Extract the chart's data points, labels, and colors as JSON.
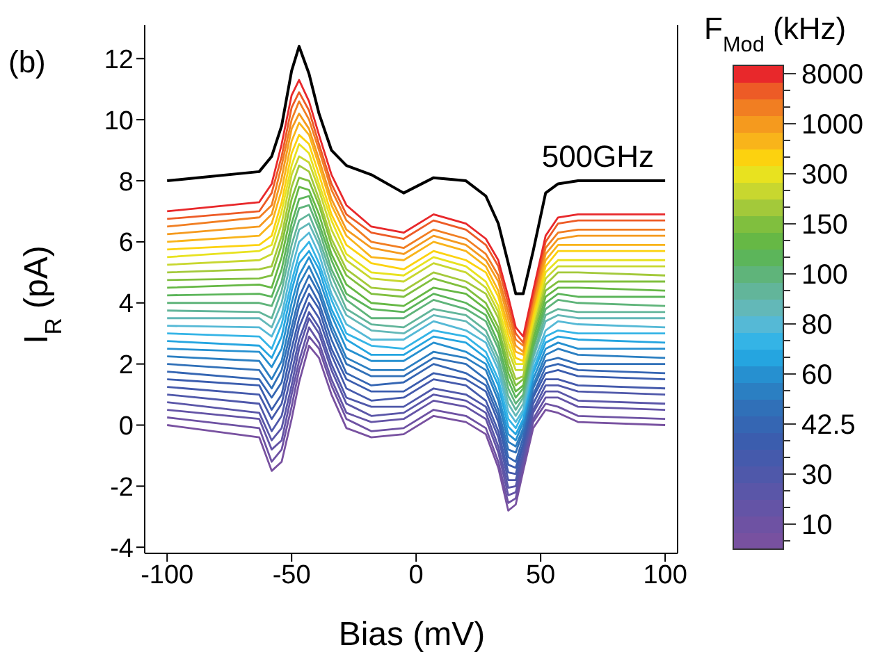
{
  "chart_data": {
    "type": "line",
    "annotations": [
      "(b)"
    ],
    "xlabel": "Bias (mV)",
    "ylabel": "I$_{R}$ (pA)",
    "legend_title": "F$_{Mod}$ (kHz)",
    "legend": "right",
    "xlim": [
      -109,
      105
    ],
    "xticks": [
      -100,
      -50,
      0,
      50,
      100
    ],
    "ylim": [
      -4.2,
      13.1
    ],
    "yticks": [
      -4,
      -2,
      0,
      2,
      4,
      6,
      8,
      10,
      12
    ],
    "marker": "none",
    "line_style": "solid",
    "x": [
      -100,
      -63,
      -58,
      -54,
      -50,
      -47,
      -43,
      -39,
      -34,
      -28,
      -18,
      -5,
      7,
      20,
      28,
      33,
      37,
      40,
      43,
      47,
      52,
      57,
      65,
      100
    ],
    "series": [
      {
        "color": "#7851a0",
        "values": [
          0,
          -0.4,
          -1.5,
          -1.2,
          0.2,
          1.4,
          2.6,
          2.2,
          1.0,
          -0.1,
          -0.4,
          -0.3,
          0.3,
          0.1,
          -0.3,
          -1.4,
          -2.8,
          -2.6,
          -1.5,
          -0.1,
          0.5,
          0.4,
          0.1,
          0
        ]
      },
      {
        "name": "10",
        "color": "#6e52a3",
        "values": [
          0.25,
          -0.1,
          -1.2,
          -0.8,
          0.6,
          1.8,
          2.9,
          2.5,
          1.3,
          0.2,
          -0.2,
          -0.1,
          0.5,
          0.3,
          -0.1,
          -1.2,
          -2.55,
          -2.4,
          -1.3,
          0.1,
          0.7,
          0.6,
          0.3,
          0.2
        ]
      },
      {
        "color": "#6454a6",
        "values": [
          0.5,
          0.2,
          -0.8,
          -0.5,
          1.0,
          2.1,
          3.2,
          2.7,
          1.5,
          0.4,
          0.1,
          0.2,
          0.8,
          0.6,
          0.2,
          -0.9,
          -2.3,
          -2.2,
          -1.2,
          0.2,
          0.9,
          0.9,
          0.6,
          0.5
        ]
      },
      {
        "color": "#5a56a8",
        "values": [
          0.75,
          0.4,
          -0.5,
          -0.1,
          1.3,
          2.5,
          3.5,
          3.0,
          1.8,
          0.7,
          0.3,
          0.4,
          1.0,
          0.8,
          0.4,
          -0.7,
          -2.05,
          -2.0,
          -1.0,
          0.4,
          1.1,
          1.1,
          0.8,
          0.7
        ]
      },
      {
        "name": "30",
        "color": "#4f58aa",
        "values": [
          1,
          0.7,
          -0.2,
          0.3,
          1.7,
          2.8,
          3.7,
          3.2,
          2.0,
          0.9,
          0.6,
          0.6,
          1.2,
          1.0,
          0.6,
          -0.4,
          -1.8,
          -1.8,
          -0.9,
          0.5,
          1.3,
          1.3,
          1.1,
          1.0
        ]
      },
      {
        "color": "#455aac",
        "values": [
          1.25,
          1.0,
          0.2,
          0.7,
          2.1,
          3.2,
          4.0,
          3.5,
          2.3,
          1.2,
          0.8,
          0.9,
          1.5,
          1.3,
          0.8,
          -0.2,
          -1.55,
          -1.6,
          -0.7,
          0.7,
          1.5,
          1.5,
          1.3,
          1.2
        ]
      },
      {
        "color": "#3b5dae",
        "values": [
          1.5,
          1.3,
          0.5,
          1.0,
          2.5,
          3.5,
          4.3,
          3.8,
          2.5,
          1.5,
          1.1,
          1.1,
          1.7,
          1.5,
          1.1,
          0.1,
          -1.3,
          -1.4,
          -0.6,
          0.9,
          1.7,
          1.8,
          1.6,
          1.5
        ]
      },
      {
        "name": "42.5",
        "color": "#3566b3",
        "values": [
          1.75,
          1.5,
          0.9,
          1.4,
          2.9,
          3.9,
          4.6,
          4.0,
          2.8,
          1.7,
          1.3,
          1.4,
          2.0,
          1.7,
          1.3,
          0.3,
          -1.05,
          -1.2,
          -0.4,
          1.0,
          1.9,
          2.0,
          1.8,
          1.7
        ]
      },
      {
        "color": "#3070b8",
        "values": [
          2,
          1.8,
          1.2,
          1.8,
          3.2,
          4.2,
          4.9,
          4.3,
          3.1,
          2.0,
          1.6,
          1.6,
          2.2,
          2.0,
          1.5,
          0.5,
          -0.8,
          -0.9,
          -0.2,
          1.2,
          2.1,
          2.2,
          2.0,
          2.0
        ]
      },
      {
        "color": "#2b7fc2",
        "values": [
          2.25,
          2.1,
          1.5,
          2.1,
          3.6,
          4.6,
          5.2,
          4.5,
          3.3,
          2.2,
          1.8,
          1.8,
          2.4,
          2.2,
          1.8,
          0.8,
          -0.55,
          -0.7,
          -0.1,
          1.3,
          2.3,
          2.5,
          2.3,
          2.2
        ]
      },
      {
        "name": "60",
        "color": "#2690d0",
        "values": [
          2.5,
          2.4,
          1.9,
          2.5,
          4.0,
          4.9,
          5.5,
          4.8,
          3.6,
          2.5,
          2.1,
          2.1,
          2.7,
          2.4,
          2.0,
          1.0,
          -0.3,
          -0.5,
          0.1,
          1.5,
          2.5,
          2.7,
          2.5,
          2.5
        ]
      },
      {
        "color": "#25a5e0",
        "values": [
          2.75,
          2.6,
          2.2,
          2.9,
          4.4,
          5.3,
          5.7,
          5.1,
          3.8,
          2.8,
          2.3,
          2.3,
          2.9,
          2.7,
          2.2,
          1.3,
          -0.05,
          -0.3,
          0.2,
          1.7,
          2.7,
          2.9,
          2.8,
          2.7
        ]
      },
      {
        "color": "#34b4e6",
        "values": [
          3,
          2.9,
          2.5,
          3.3,
          4.7,
          5.6,
          6.0,
          5.3,
          4.1,
          3.0,
          2.6,
          2.5,
          3.1,
          2.9,
          2.4,
          1.5,
          0.2,
          -0.1,
          0.4,
          1.8,
          2.9,
          3.1,
          3.0,
          3.0
        ]
      },
      {
        "name": "80",
        "color": "#55b9d6",
        "values": [
          3.25,
          3.2,
          2.9,
          3.6,
          5.1,
          6.0,
          6.3,
          5.6,
          4.3,
          3.3,
          2.8,
          2.8,
          3.4,
          3.1,
          2.7,
          1.8,
          0.45,
          0.1,
          0.5,
          2.0,
          3.1,
          3.4,
          3.3,
          3.2
        ]
      },
      {
        "color": "#63b8b8",
        "values": [
          3.5,
          3.5,
          3.2,
          4.0,
          5.5,
          6.4,
          6.6,
          5.9,
          4.6,
          3.6,
          3.1,
          3.0,
          3.6,
          3.4,
          2.9,
          2.0,
          0.7,
          0.3,
          0.7,
          2.2,
          3.4,
          3.6,
          3.5,
          3.5
        ]
      },
      {
        "color": "#62b59a",
        "values": [
          3.75,
          3.7,
          3.5,
          4.4,
          5.9,
          6.7,
          6.9,
          6.1,
          4.9,
          3.8,
          3.3,
          3.2,
          3.8,
          3.6,
          3.1,
          2.2,
          0.95,
          0.5,
          0.9,
          2.3,
          3.6,
          3.8,
          3.7,
          3.7
        ]
      },
      {
        "name": "100",
        "color": "#5fb47a",
        "values": [
          4,
          4.0,
          3.9,
          4.7,
          6.3,
          7.1,
          7.2,
          6.4,
          5.1,
          4.1,
          3.5,
          3.5,
          4.1,
          3.8,
          3.4,
          2.5,
          1.2,
          0.7,
          1.0,
          2.5,
          3.8,
          4.1,
          4.0,
          3.9
        ]
      },
      {
        "color": "#5cb55a",
        "values": [
          4.25,
          4.3,
          4.2,
          5.1,
          6.6,
          7.4,
          7.5,
          6.6,
          5.4,
          4.3,
          3.8,
          3.7,
          4.3,
          4.0,
          3.6,
          2.7,
          1.45,
          0.9,
          1.2,
          2.6,
          4.0,
          4.3,
          4.2,
          4.2
        ]
      },
      {
        "color": "#66b845",
        "values": [
          4.5,
          4.6,
          4.5,
          5.5,
          7.0,
          7.8,
          7.7,
          6.9,
          5.6,
          4.6,
          4.0,
          3.9,
          4.5,
          4.3,
          3.8,
          3.0,
          1.7,
          1.1,
          1.3,
          2.8,
          4.2,
          4.5,
          4.5,
          4.4
        ]
      },
      {
        "name": "150",
        "color": "#80bf3e",
        "values": [
          4.75,
          4.8,
          4.9,
          5.9,
          7.4,
          8.1,
          8.0,
          7.2,
          5.9,
          4.9,
          4.3,
          4.2,
          4.8,
          4.5,
          4.0,
          3.2,
          1.95,
          1.3,
          1.5,
          3.0,
          4.4,
          4.7,
          4.7,
          4.7
        ]
      },
      {
        "color": "#a3c93a",
        "values": [
          5,
          5.1,
          5.2,
          6.2,
          7.8,
          8.5,
          8.3,
          7.4,
          6.1,
          5.1,
          4.5,
          4.4,
          5.0,
          4.7,
          4.3,
          3.5,
          2.2,
          1.5,
          1.6,
          3.1,
          4.6,
          5.0,
          5.0,
          4.9
        ]
      },
      {
        "color": "#c8d72f",
        "values": [
          5.25,
          5.4,
          5.6,
          6.6,
          8.2,
          8.8,
          8.6,
          7.7,
          6.4,
          5.4,
          4.8,
          4.7,
          5.3,
          5.0,
          4.5,
          3.7,
          2.45,
          1.8,
          1.8,
          3.3,
          4.8,
          5.2,
          5.2,
          5.2
        ]
      },
      {
        "name": "300",
        "color": "#e8e21f",
        "values": [
          5.5,
          5.7,
          5.9,
          7.0,
          8.5,
          9.2,
          8.9,
          7.9,
          6.7,
          5.6,
          5.0,
          4.9,
          5.5,
          5.2,
          4.7,
          3.9,
          2.7,
          2.0,
          2.0,
          3.4,
          5.0,
          5.4,
          5.4,
          5.4
        ]
      },
      {
        "color": "#fcd20f",
        "values": [
          5.75,
          5.9,
          6.2,
          7.3,
          8.9,
          9.5,
          9.2,
          8.2,
          6.9,
          5.9,
          5.3,
          5.1,
          5.7,
          5.4,
          5.0,
          4.2,
          2.95,
          2.2,
          2.1,
          3.6,
          5.2,
          5.7,
          5.7,
          5.7
        ]
      },
      {
        "color": "#f9b41a",
        "values": [
          6,
          6.2,
          6.6,
          7.7,
          9.3,
          9.9,
          9.5,
          8.5,
          7.2,
          6.2,
          5.5,
          5.4,
          6.0,
          5.7,
          5.2,
          4.4,
          3.2,
          2.4,
          2.3,
          3.8,
          5.4,
          5.9,
          5.9,
          5.9
        ]
      },
      {
        "name": "1000",
        "color": "#f59a1e",
        "values": [
          6.25,
          6.5,
          6.9,
          8.1,
          9.7,
          10.2,
          9.7,
          8.7,
          7.4,
          6.4,
          5.8,
          5.6,
          6.2,
          5.9,
          5.4,
          4.7,
          3.45,
          2.6,
          2.4,
          3.9,
          5.6,
          6.1,
          6.2,
          6.2
        ]
      },
      {
        "color": "#f17e22",
        "values": [
          6.5,
          6.8,
          7.2,
          8.5,
          10.0,
          10.6,
          10.0,
          9.0,
          7.7,
          6.7,
          6.0,
          5.8,
          6.4,
          6.1,
          5.6,
          4.9,
          3.7,
          2.8,
          2.6,
          4.1,
          5.8,
          6.3,
          6.4,
          6.4
        ]
      },
      {
        "color": "#ed5b26",
        "values": [
          6.75,
          7.0,
          7.6,
          8.8,
          10.4,
          10.9,
          10.3,
          9.2,
          7.9,
          6.9,
          6.3,
          6.1,
          6.7,
          6.4,
          5.9,
          5.2,
          3.95,
          3.0,
          2.7,
          4.2,
          6.0,
          6.6,
          6.7,
          6.7
        ]
      },
      {
        "name": "8000",
        "color": "#e8282b",
        "values": [
          7,
          7.3,
          7.9,
          9.2,
          10.8,
          11.3,
          10.6,
          9.5,
          8.2,
          7.2,
          6.5,
          6.3,
          6.9,
          6.6,
          6.1,
          5.4,
          4.2,
          3.2,
          2.9,
          4.4,
          6.2,
          6.8,
          6.9,
          6.9
        ]
      },
      {
        "name": "500GHz",
        "color": "#000000",
        "values": [
          8,
          8.3,
          8.8,
          9.8,
          11.6,
          12.4,
          11.5,
          10.2,
          9.0,
          8.5,
          8.2,
          7.6,
          8.1,
          8.0,
          7.5,
          6.6,
          5.3,
          4.3,
          4.3,
          5.7,
          7.6,
          7.9,
          8.0,
          8.0
        ]
      }
    ]
  }
}
